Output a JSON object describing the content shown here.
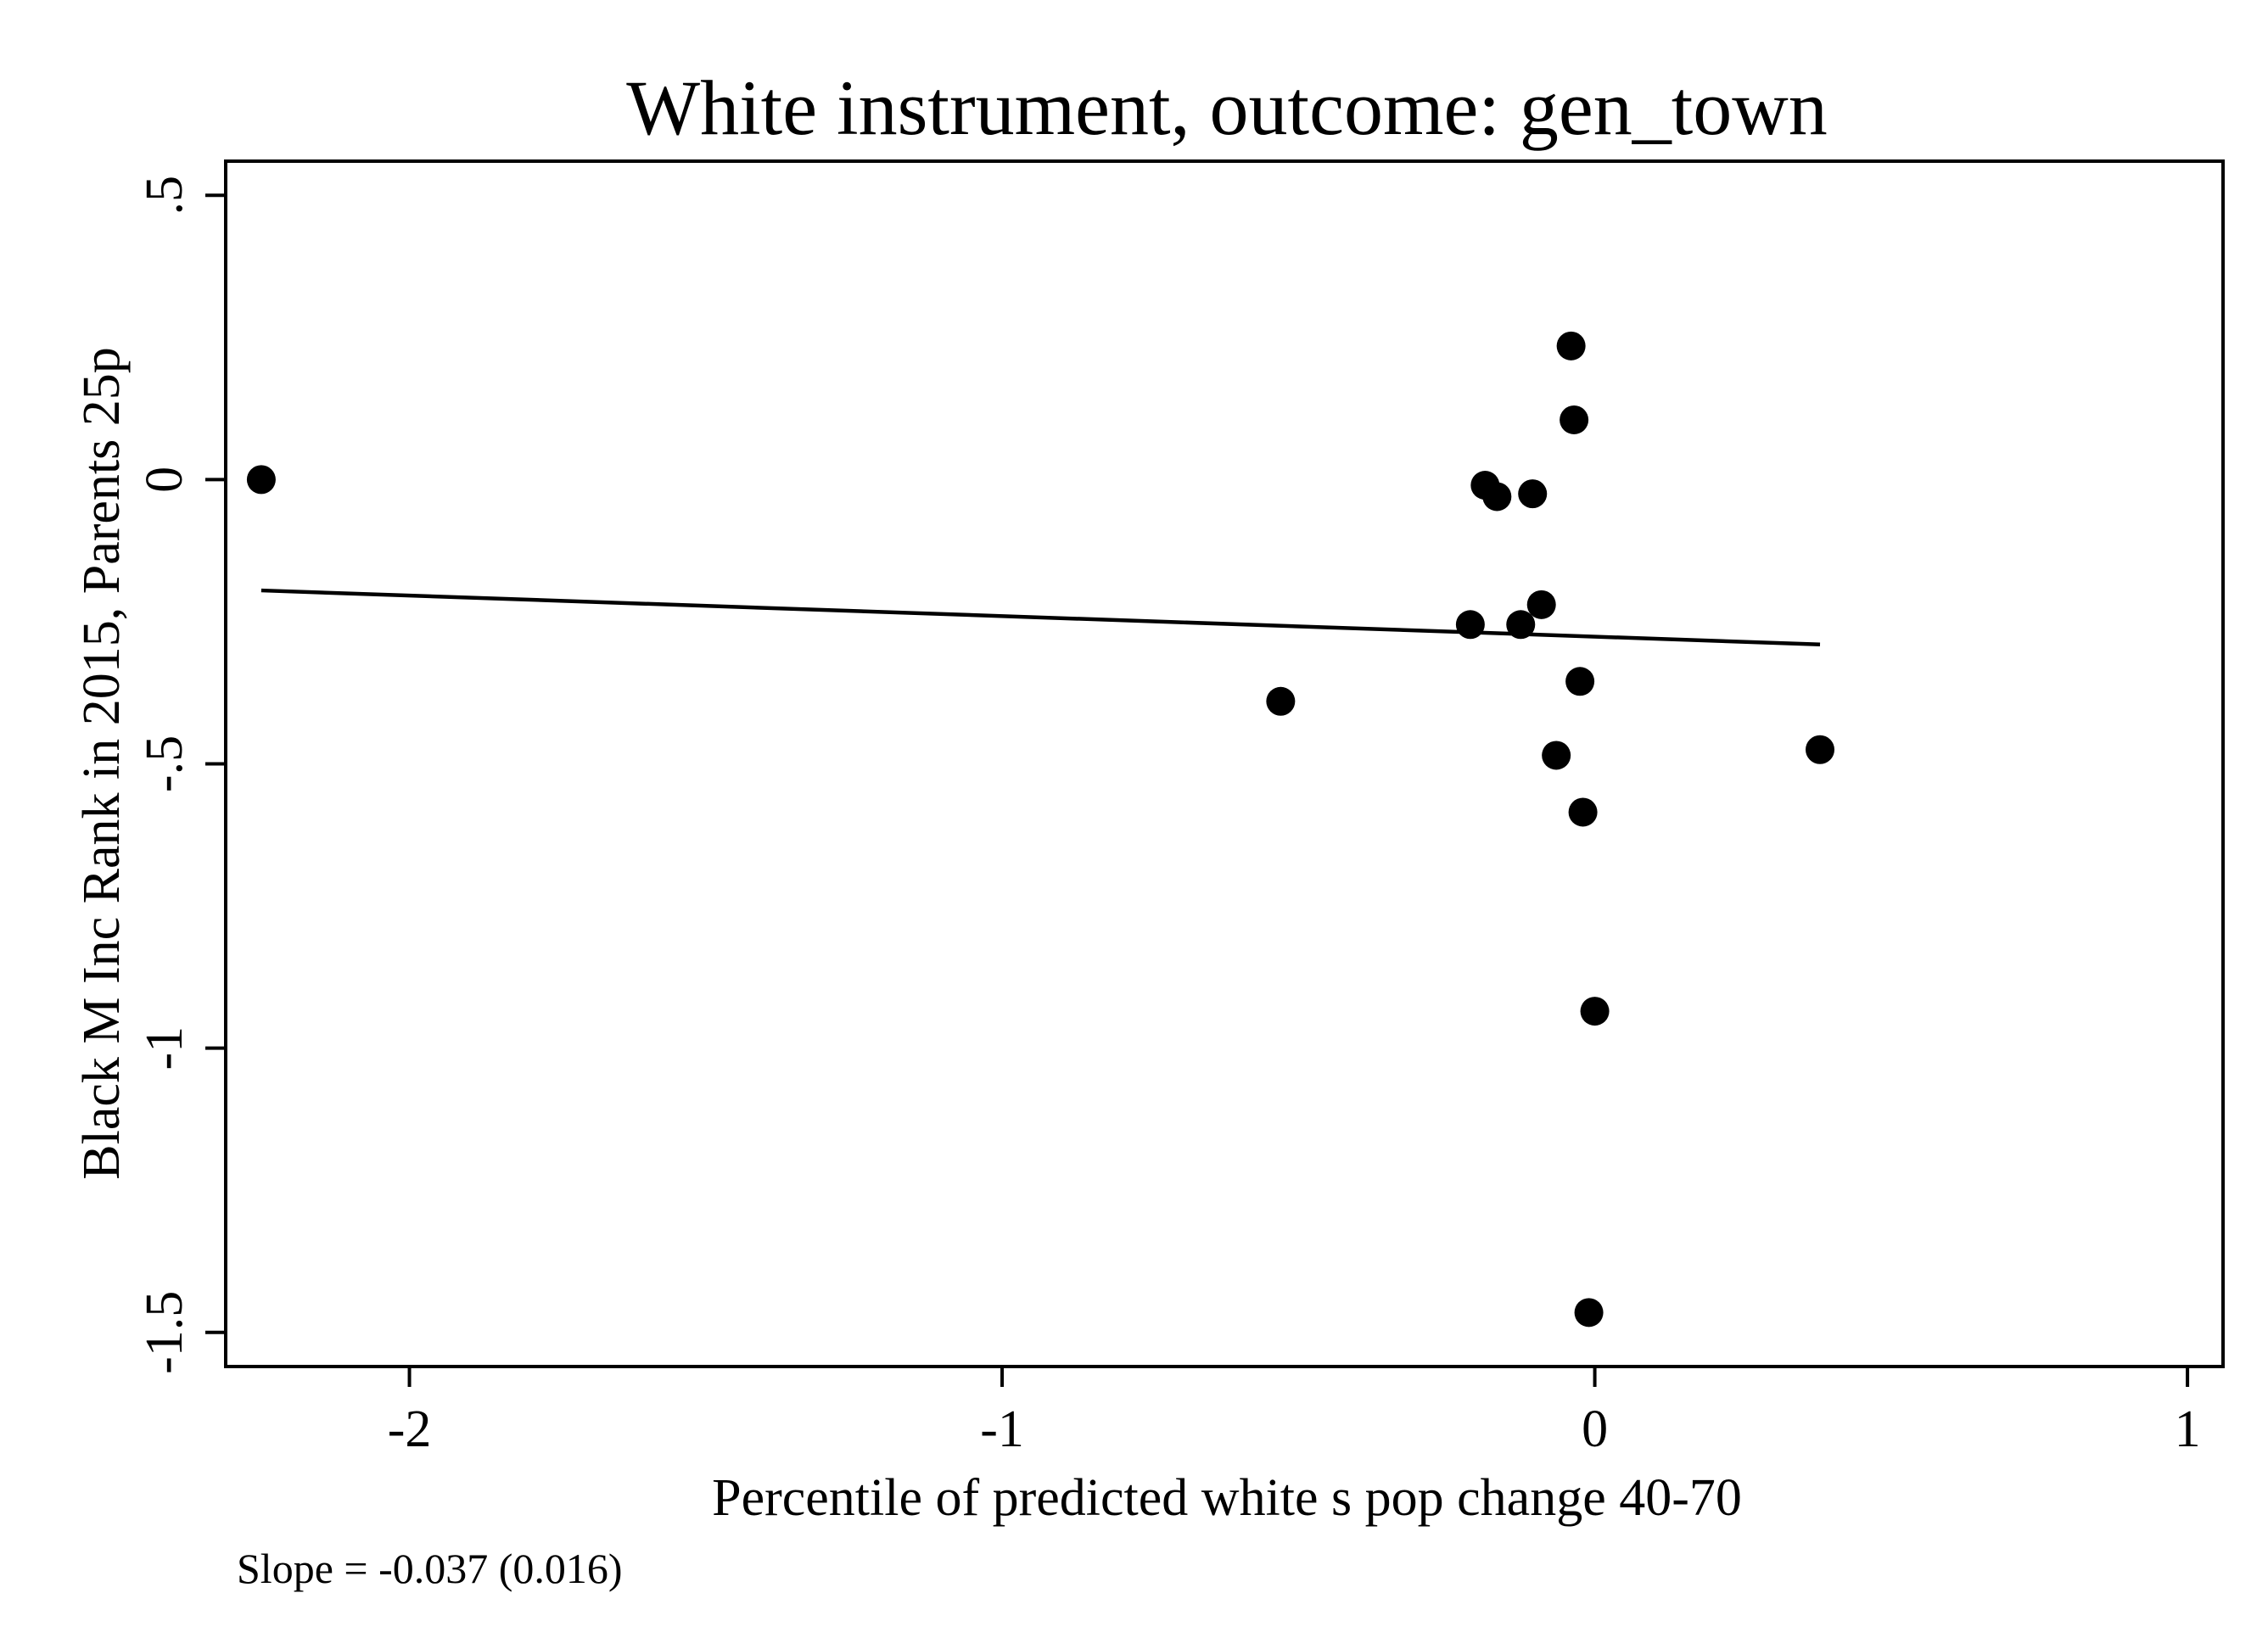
{
  "chart_data": {
    "type": "scatter",
    "title": "White instrument, outcome: gen_town",
    "xlabel": "Percentile of predicted white s pop change 40-70",
    "ylabel": "Black M Inc Rank in 2015, Parents 25p",
    "xlim": [
      -2.31,
      1.06
    ],
    "ylim": [
      -1.56,
      0.56
    ],
    "xticks": [
      -2,
      -1,
      0,
      1
    ],
    "xtick_labels": [
      "-2",
      "-1",
      "0",
      "1"
    ],
    "yticks": [
      0.5,
      0,
      -0.5,
      -1,
      -1.5
    ],
    "ytick_labels": [
      ".5",
      "0",
      "-.5",
      "-1",
      "-1.5"
    ],
    "grid": false,
    "legend": "none",
    "annotation": "Slope = -0.037 (0.016)",
    "series": [
      {
        "points": [
          {
            "x": -2.25,
            "y": 0.0
          },
          {
            "x": -0.53,
            "y": -0.39
          },
          {
            "x": -0.21,
            "y": -0.255
          },
          {
            "x": -0.185,
            "y": -0.01
          },
          {
            "x": -0.165,
            "y": -0.03
          },
          {
            "x": -0.125,
            "y": -0.255
          },
          {
            "x": -0.105,
            "y": -0.025
          },
          {
            "x": -0.09,
            "y": -0.22
          },
          {
            "x": -0.065,
            "y": -0.485
          },
          {
            "x": -0.04,
            "y": 0.235
          },
          {
            "x": -0.035,
            "y": 0.105
          },
          {
            "x": -0.025,
            "y": -0.355
          },
          {
            "x": -0.02,
            "y": -0.585
          },
          {
            "x": -0.01,
            "y": -1.465
          },
          {
            "x": 0.0,
            "y": -0.935
          },
          {
            "x": 0.38,
            "y": -0.475
          }
        ]
      }
    ],
    "fit_line": {
      "x": [
        -2.25,
        0.38
      ],
      "y": [
        -0.195,
        -0.29
      ]
    }
  },
  "colors": {
    "marker": "#000000",
    "line": "#000000",
    "background": "#ffffff"
  }
}
